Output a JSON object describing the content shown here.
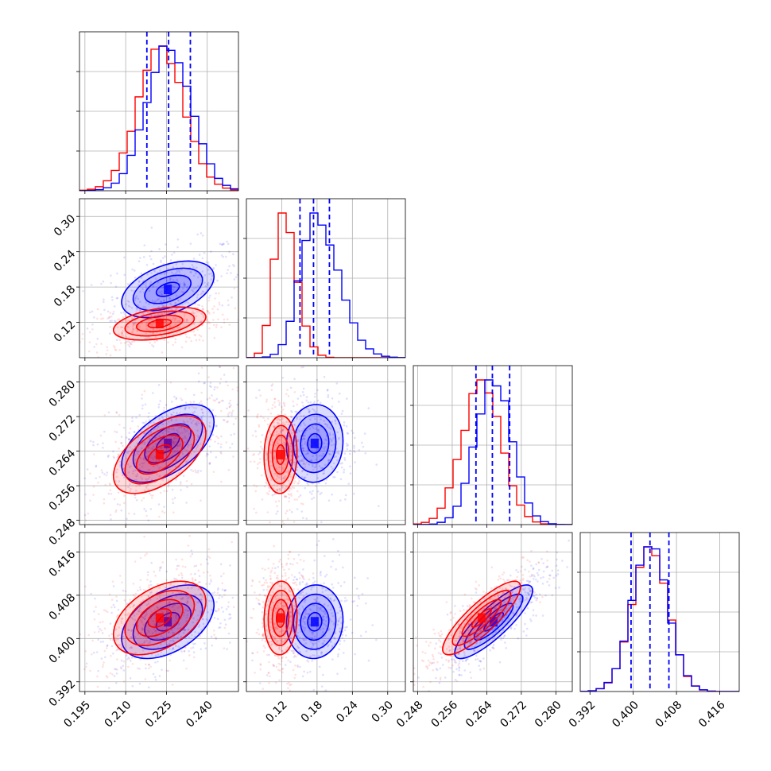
{
  "chart_data": {
    "type": "corner",
    "title": "",
    "colors": {
      "series_a": "#0000ff",
      "series_b": "#ff0000",
      "grid": "#b0b0b0"
    },
    "series": [
      {
        "color_key": "series_a",
        "quantile_lines": "dashed"
      },
      {
        "color_key": "series_b"
      }
    ],
    "parameters": [
      {
        "range": [
          0.193,
          0.2515
        ],
        "ticks": [
          "0.195",
          "0.210",
          "0.225",
          "0.240"
        ],
        "tick_values": [
          0.195,
          0.21,
          0.225,
          0.24
        ],
        "quantiles": [
          0.2178,
          0.2258,
          0.2338
        ],
        "hist_peak": {
          "series_a": 0.226,
          "series_b": 0.223
        },
        "hist_sigma": {
          "series_a": 0.0082,
          "series_b": 0.0085
        }
      },
      {
        "range": [
          0.06,
          0.33
        ],
        "ticks": [
          "0.12",
          "0.18",
          "0.24",
          "0.30"
        ],
        "tick_values": [
          0.12,
          0.18,
          0.24,
          0.3
        ],
        "quantiles": [
          0.151,
          0.174,
          0.201
        ],
        "hist_peak": {
          "series_a": 0.175,
          "series_b": 0.12
        },
        "hist_sigma": {
          "series_a": 0.025,
          "series_b": 0.015
        }
      },
      {
        "range": [
          0.247,
          0.2838
        ],
        "ticks": [
          "0.248",
          "0.256",
          "0.264",
          "0.272",
          "0.280"
        ],
        "tick_values": [
          0.248,
          0.256,
          0.264,
          0.272,
          0.28
        ],
        "quantiles": [
          0.2615,
          0.2653,
          0.2693
        ],
        "hist_peak": {
          "series_a": 0.2656,
          "series_b": 0.2628
        },
        "hist_sigma": {
          "series_a": 0.0042,
          "series_b": 0.0045
        }
      },
      {
        "range": [
          0.3902,
          0.4196
        ],
        "ticks": [
          "0.392",
          "0.400",
          "0.408",
          "0.416"
        ],
        "tick_values": [
          0.392,
          0.4,
          0.408,
          0.416
        ],
        "quantiles": [
          0.3996,
          0.4031,
          0.4066
        ],
        "hist_peak": {
          "series_a": 0.4031,
          "series_b": 0.4031
        },
        "hist_sigma": {
          "series_a": 0.0033,
          "series_b": 0.0033
        }
      }
    ],
    "joint": [
      {
        "x": 0,
        "y": 1,
        "series_a": {
          "cx": 0.2255,
          "cy": 0.176,
          "sx": 0.0085,
          "sy": 0.024,
          "rho": 0.45
        },
        "series_b": {
          "cx": 0.2225,
          "cy": 0.118,
          "sx": 0.0085,
          "sy": 0.014,
          "rho": 0.4
        }
      },
      {
        "x": 0,
        "y": 2,
        "series_a": {
          "cx": 0.2255,
          "cy": 0.2658,
          "sx": 0.0085,
          "sy": 0.0045,
          "rho": 0.55
        },
        "series_b": {
          "cx": 0.2225,
          "cy": 0.2632,
          "sx": 0.0085,
          "sy": 0.0045,
          "rho": 0.55
        }
      },
      {
        "x": 1,
        "y": 2,
        "series_a": {
          "cx": 0.176,
          "cy": 0.2658,
          "sx": 0.024,
          "sy": 0.0045,
          "rho": 0.05
        },
        "series_b": {
          "cx": 0.118,
          "cy": 0.2632,
          "sx": 0.014,
          "sy": 0.0045,
          "rho": 0.05
        }
      },
      {
        "x": 0,
        "y": 3,
        "series_a": {
          "cx": 0.2255,
          "cy": 0.4031,
          "sx": 0.0085,
          "sy": 0.0034,
          "rho": 0.45
        },
        "series_b": {
          "cx": 0.2225,
          "cy": 0.4038,
          "sx": 0.0085,
          "sy": 0.0034,
          "rho": 0.45
        }
      },
      {
        "x": 1,
        "y": 3,
        "series_a": {
          "cx": 0.176,
          "cy": 0.4031,
          "sx": 0.024,
          "sy": 0.0034,
          "rho": 0.05
        },
        "series_b": {
          "cx": 0.118,
          "cy": 0.4038,
          "sx": 0.014,
          "sy": 0.0034,
          "rho": 0.05
        }
      },
      {
        "x": 2,
        "y": 3,
        "series_a": {
          "cx": 0.2656,
          "cy": 0.4031,
          "sx": 0.0045,
          "sy": 0.0034,
          "rho": 0.85
        },
        "series_b": {
          "cx": 0.2628,
          "cy": 0.4038,
          "sx": 0.0045,
          "sy": 0.0034,
          "rho": 0.85
        }
      }
    ],
    "contour_levels_sigma": [
      0.5,
      1.0,
      1.5,
      2.0
    ],
    "grid": true,
    "legend": "none"
  }
}
